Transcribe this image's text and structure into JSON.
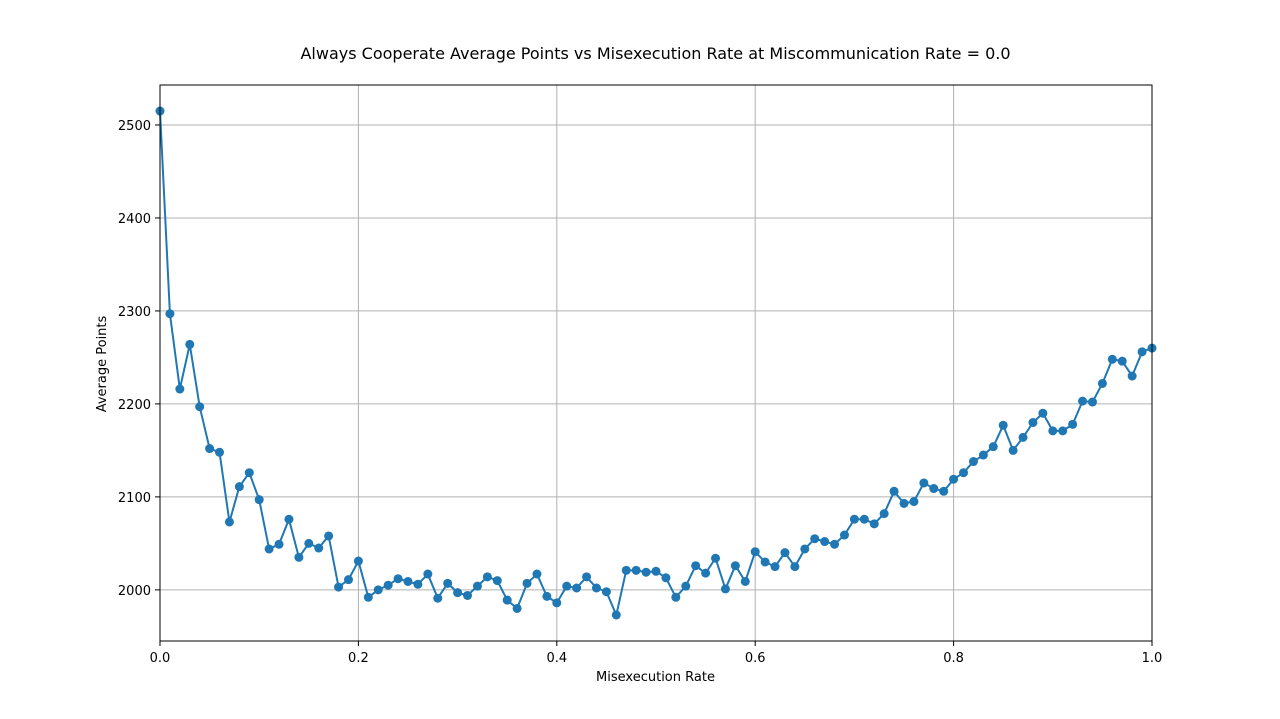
{
  "chart_data": {
    "type": "line",
    "title": "Always Cooperate Average Points vs Misexecution Rate at Miscommunication Rate = 0.0",
    "xlabel": "Misexecution Rate",
    "ylabel": "Average Points",
    "xlim": [
      0.0,
      1.0
    ],
    "ylim": [
      1945,
      2543
    ],
    "x_ticks": [
      0.0,
      0.2,
      0.4,
      0.6,
      0.8,
      1.0
    ],
    "x_tick_labels": [
      "0.0",
      "0.2",
      "0.4",
      "0.6",
      "0.8",
      "1.0"
    ],
    "y_ticks": [
      2000,
      2100,
      2200,
      2300,
      2400,
      2500
    ],
    "y_tick_labels": [
      "2000",
      "2100",
      "2200",
      "2300",
      "2400",
      "2500"
    ],
    "grid": true,
    "series": [
      {
        "color": "#1f77b4",
        "marker": "circle",
        "x": [
          0.0,
          0.01,
          0.02,
          0.03,
          0.04,
          0.05,
          0.06,
          0.07,
          0.08,
          0.09,
          0.1,
          0.11,
          0.12,
          0.13,
          0.14,
          0.15,
          0.16,
          0.17,
          0.18,
          0.19,
          0.2,
          0.21,
          0.22,
          0.23,
          0.24,
          0.25,
          0.26,
          0.27,
          0.28,
          0.29,
          0.3,
          0.31,
          0.32,
          0.33,
          0.34,
          0.35,
          0.36,
          0.37,
          0.38,
          0.39,
          0.4,
          0.41,
          0.42,
          0.43,
          0.44,
          0.45,
          0.46,
          0.47,
          0.48,
          0.49,
          0.5,
          0.51,
          0.52,
          0.53,
          0.54,
          0.55,
          0.56,
          0.57,
          0.58,
          0.59,
          0.6,
          0.61,
          0.62,
          0.63,
          0.64,
          0.65,
          0.66,
          0.67,
          0.68,
          0.69,
          0.7,
          0.71,
          0.72,
          0.73,
          0.74,
          0.75,
          0.76,
          0.77,
          0.78,
          0.79,
          0.8,
          0.81,
          0.82,
          0.83,
          0.84,
          0.85,
          0.86,
          0.87,
          0.88,
          0.89,
          0.9,
          0.91,
          0.92,
          0.93,
          0.94,
          0.95,
          0.96,
          0.97,
          0.98,
          0.99,
          1.0
        ],
        "y": [
          2515,
          2297,
          2216,
          2264,
          2197,
          2152,
          2148,
          2073,
          2111,
          2126,
          2097,
          2044,
          2049,
          2076,
          2035,
          2050,
          2045,
          2058,
          2003,
          2011,
          2031,
          1992,
          2000,
          2005,
          2012,
          2009,
          2006,
          2017,
          1991,
          2007,
          1997,
          1994,
          2004,
          2014,
          2010,
          1989,
          1980,
          2007,
          2017,
          1993,
          1986,
          2004,
          2002,
          2014,
          2002,
          1998,
          1973,
          2021,
          2021,
          2019,
          2020,
          2013,
          1992,
          2004,
          2026,
          2018,
          2034,
          2001,
          2026,
          2009,
          2041,
          2030,
          2025,
          2040,
          2025,
          2044,
          2055,
          2052,
          2049,
          2059,
          2076,
          2076,
          2071,
          2082,
          2106,
          2093,
          2095,
          2115,
          2109,
          2106,
          2119,
          2126,
          2138,
          2145,
          2154,
          2177,
          2150,
          2164,
          2180,
          2190,
          2171,
          2171,
          2178,
          2203,
          2202,
          2222,
          2248,
          2246,
          2230,
          2256,
          2260
        ]
      }
    ]
  }
}
